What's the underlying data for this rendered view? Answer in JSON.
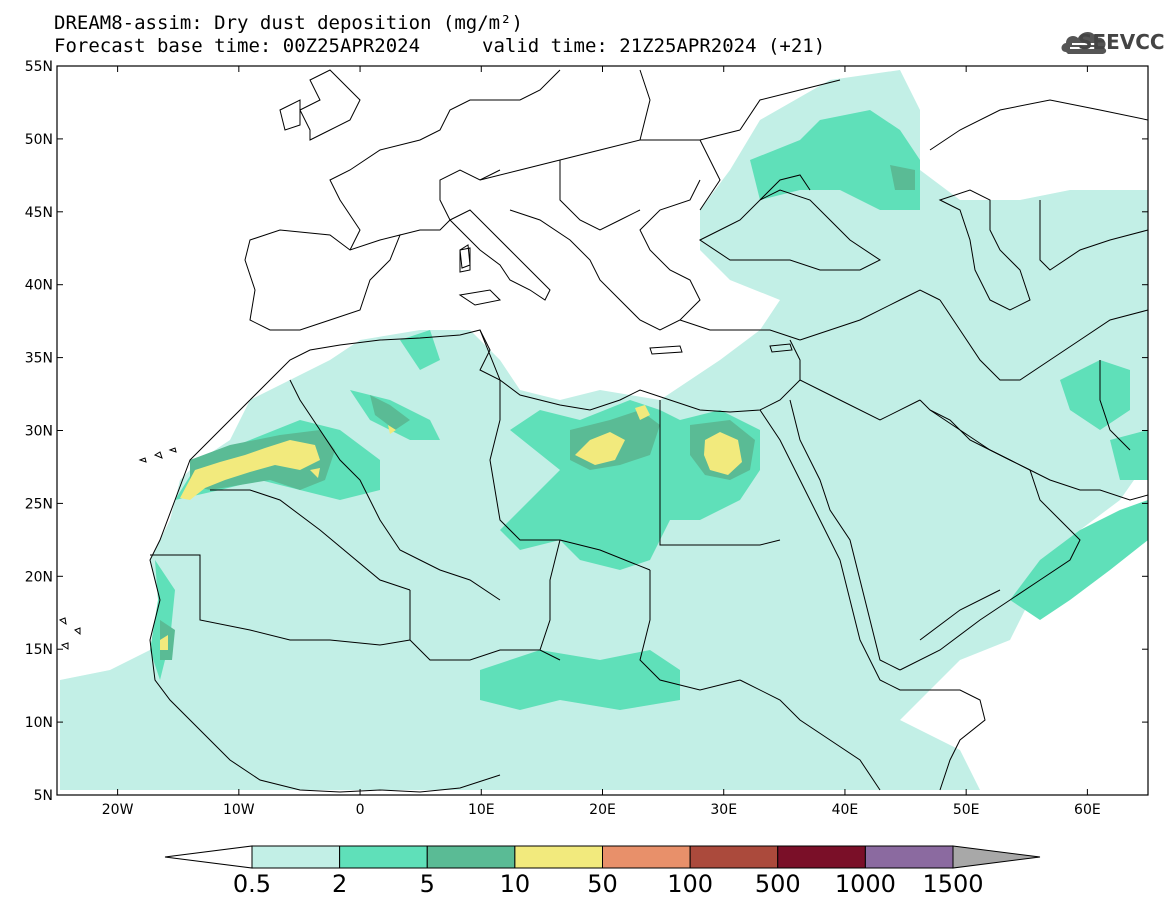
{
  "header": {
    "title_line1": "DREAM8-assim: Dry dust deposition (mg/m²)",
    "title_line2_left": "Forecast base time: 00Z25APR2024",
    "title_line2_right": "valid time: 21Z25APR2024 (+21)"
  },
  "logo": {
    "text": "SEEVCCC",
    "icon": "cloud-logo-icon"
  },
  "map": {
    "projection": "lat-lon",
    "lon_range": [
      -25,
      65
    ],
    "lat_range": [
      5,
      55
    ],
    "lon_ticks": [
      {
        "value": -20,
        "label": "20W"
      },
      {
        "value": -10,
        "label": "10W"
      },
      {
        "value": 0,
        "label": "0"
      },
      {
        "value": 10,
        "label": "10E"
      },
      {
        "value": 20,
        "label": "20E"
      },
      {
        "value": 30,
        "label": "30E"
      },
      {
        "value": 40,
        "label": "40E"
      },
      {
        "value": 50,
        "label": "50E"
      },
      {
        "value": 60,
        "label": "60E"
      }
    ],
    "lat_ticks": [
      {
        "value": 55,
        "label": "55N"
      },
      {
        "value": 50,
        "label": "50N"
      },
      {
        "value": 45,
        "label": "45N"
      },
      {
        "value": 40,
        "label": "40N"
      },
      {
        "value": 35,
        "label": "35N"
      },
      {
        "value": 30,
        "label": "30N"
      },
      {
        "value": 25,
        "label": "25N"
      },
      {
        "value": 20,
        "label": "20N"
      },
      {
        "value": 15,
        "label": "15N"
      },
      {
        "value": 10,
        "label": "10N"
      },
      {
        "value": 5,
        "label": "5N"
      }
    ]
  },
  "colorbar": {
    "colors": [
      "#ffffff",
      "#c2efe6",
      "#5fe0b9",
      "#5abb95",
      "#f2ea7d",
      "#e8906a",
      "#ab4a3c",
      "#7a0f28",
      "#8b6aa0",
      "#a8a8a8"
    ],
    "labels": [
      "0.5",
      "2",
      "5",
      "10",
      "50",
      "100",
      "500",
      "1000",
      "1500"
    ]
  },
  "palette": {
    "level1": "#c2efe6",
    "level2": "#5fe0b9",
    "level3": "#5abb95",
    "level4": "#f2ea7d"
  }
}
